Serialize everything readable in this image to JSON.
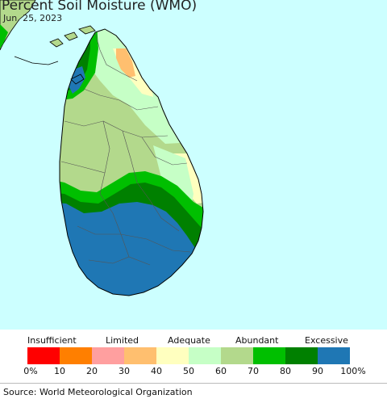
{
  "title": "Percent Soil Moisture (WMO)",
  "date": "Jun. 25, 2023",
  "legend": {
    "categories": [
      "Insufficient",
      "Limited",
      "Adequate",
      "Abundant",
      "Excessive"
    ],
    "colors": [
      "#ff0000",
      "#ff7f00",
      "#ff9f9f",
      "#ffbf6f",
      "#ffffbf",
      "#c6ffc6",
      "#b3d98c",
      "#00bf00",
      "#008000",
      "#1f77b4"
    ],
    "ticks": [
      "0%",
      "10",
      "20",
      "30",
      "40",
      "50",
      "60",
      "70",
      "80",
      "90",
      "100%"
    ]
  },
  "source": "Source: World Meteorological Organization"
}
